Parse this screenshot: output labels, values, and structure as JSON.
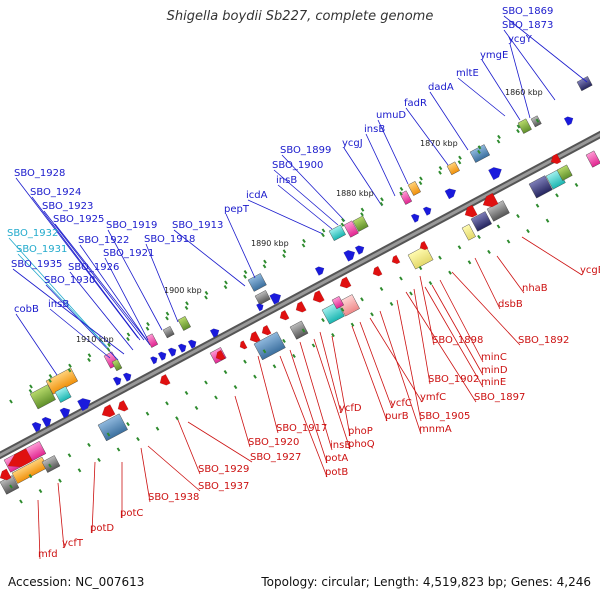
{
  "title": "Shigella boydii Sb227, complete genome",
  "footer": {
    "accession": "Accession: NC_007613",
    "summary": "Topology: circular; Length: 4,519,823 bp; Genes: 4,246"
  },
  "colors": {
    "forward_label": "#1a1acc",
    "reverse_label": "#cc1111",
    "rna_label": "#22aacc",
    "backbone": "#777777",
    "tick": "#2e8b2e"
  },
  "kbp_labels": [
    "1860 kbp",
    "1870 kbp",
    "1880 kbp",
    "1890 kbp",
    "1900 kbp",
    "1910 kbp"
  ],
  "upper_labels": [
    "SBO_1869",
    "SBO_1873",
    "ycgY",
    "ymgE",
    "mltE",
    "dadA",
    "fadR",
    "umuD",
    "insB",
    "ycgJ",
    "SBO_1899",
    "SBO_1900",
    "insB",
    "icdA",
    "pepT",
    "SBO_1913",
    "SBO_1928",
    "SBO_1924",
    "SBO_1923",
    "SBO_1925",
    "SBO_1919",
    "SBO_1932",
    "SBO_1922",
    "SBO_1918",
    "SBO_1931",
    "SBO_1921",
    "SBO_1935",
    "SBO_1926",
    "SBO_1930",
    "insB",
    "cobB"
  ],
  "lower_labels": [
    "ycgB",
    "nhaB",
    "dsbB",
    "SBO_1892",
    "minC",
    "SBO_1898",
    "minD",
    "minE",
    "SBO_1902",
    "SBO_1897",
    "ymfC",
    "ycfC",
    "SBO_1905",
    "purB",
    "mnmA",
    "ycfD",
    "phoP",
    "phoQ",
    "insB",
    "potA",
    "potB",
    "SBO_1917",
    "SBO_1920",
    "SBO_1927",
    "SBO_1929",
    "SBO_1937",
    "SBO_1938",
    "potC",
    "potD",
    "ycfT",
    "mfd"
  ]
}
